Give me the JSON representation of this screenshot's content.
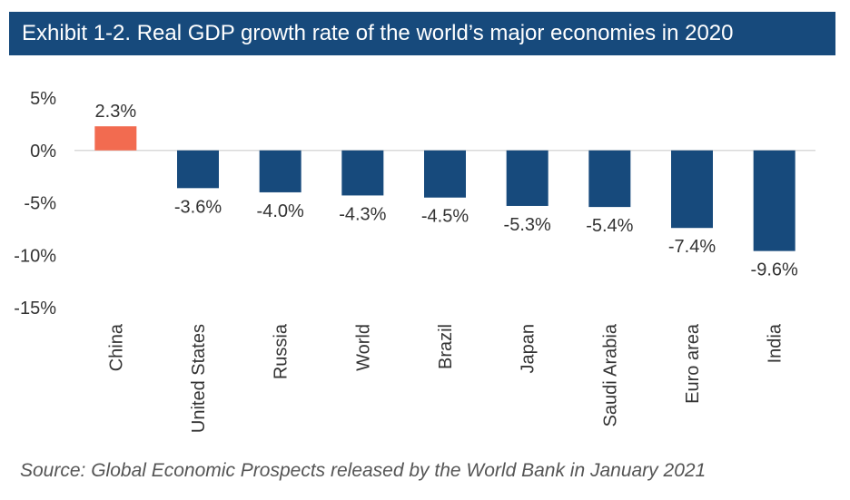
{
  "title": "Exhibit 1-2. Real GDP growth rate of the world’s major economies in 2020",
  "source": "Source: Global Economic Prospects released by the World Bank in January 2021",
  "chart_data": {
    "type": "bar",
    "categories": [
      "China",
      "United States",
      "Russia",
      "World",
      "Brazil",
      "Japan",
      "Saudi Arabia",
      "Euro area",
      "India"
    ],
    "values": [
      2.3,
      -3.6,
      -4.0,
      -4.3,
      -4.5,
      -5.3,
      -5.4,
      -7.4,
      -9.6
    ],
    "data_labels": [
      "2.3%",
      "-3.6%",
      "-4.0%",
      "-4.3%",
      "-4.5%",
      "-5.3%",
      "-5.4%",
      "-7.4%",
      "-9.6%"
    ],
    "yticks": [
      5,
      0,
      -5,
      -10,
      -15
    ],
    "ytick_labels": [
      "5%",
      "0%",
      "-5%",
      "-10%",
      "-15%"
    ],
    "ylim": [
      -15,
      5
    ],
    "grid": false,
    "legend": "none",
    "colors": {
      "positive": "#f26b50",
      "negative": "#174a7c",
      "title_bar": "#174a7c",
      "zero_line": "#d9d9d9",
      "text": "#333333"
    }
  }
}
